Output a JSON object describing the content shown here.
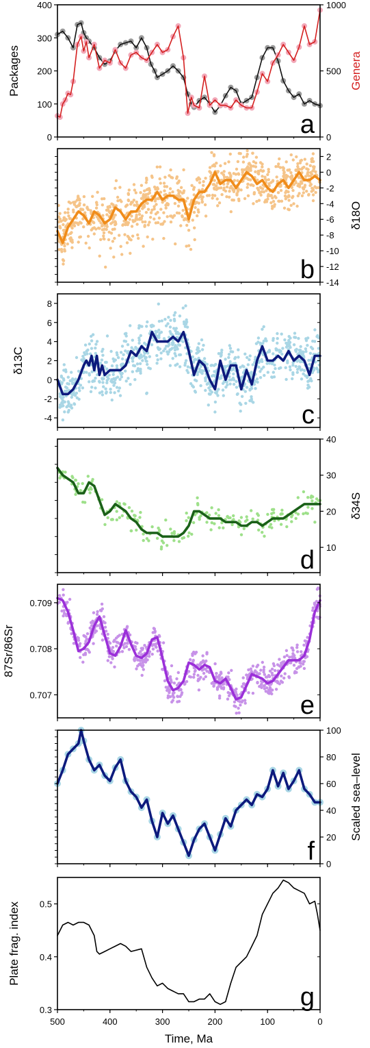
{
  "figure": {
    "x_axis": {
      "label": "Time, Ma",
      "ticks": [
        500,
        400,
        300,
        200,
        100,
        0
      ]
    }
  },
  "chart_data": [
    {
      "panel": "a",
      "type": "line",
      "xlim": [
        500,
        0
      ],
      "left_axis": {
        "label": "Packages",
        "ylim": [
          0,
          400
        ],
        "ticks": [
          0,
          100,
          200,
          300,
          400
        ]
      },
      "right_axis": {
        "label": "Genera",
        "label_color": "#d42020",
        "ylim": [
          0,
          1000
        ],
        "ticks": [
          0,
          500,
          1000
        ]
      },
      "series": [
        {
          "name": "Packages",
          "axis": "left",
          "color": "#111111",
          "marker_color": "#9a9a9a",
          "x": [
            500,
            490,
            480,
            470,
            462,
            455,
            450,
            445,
            440,
            430,
            420,
            410,
            400,
            390,
            380,
            370,
            360,
            350,
            340,
            330,
            322,
            315,
            310,
            300,
            290,
            280,
            270,
            260,
            252,
            245,
            240,
            230,
            220,
            210,
            200,
            190,
            180,
            170,
            160,
            150,
            140,
            130,
            120,
            110,
            100,
            90,
            80,
            70,
            60,
            50,
            40,
            30,
            20,
            10,
            0
          ],
          "y": [
            310,
            320,
            300,
            270,
            340,
            345,
            315,
            300,
            290,
            270,
            240,
            220,
            230,
            260,
            280,
            285,
            290,
            270,
            300,
            270,
            220,
            200,
            180,
            190,
            200,
            215,
            200,
            180,
            130,
            100,
            90,
            110,
            120,
            100,
            75,
            95,
            125,
            150,
            140,
            100,
            110,
            120,
            180,
            240,
            270,
            270,
            230,
            170,
            140,
            120,
            130,
            100,
            110,
            100,
            95
          ]
        },
        {
          "name": "Genera",
          "axis": "right",
          "color": "#d42020",
          "marker_color": "#f2a8b8",
          "x": [
            500,
            495,
            490,
            485,
            480,
            475,
            470,
            462,
            455,
            450,
            445,
            440,
            430,
            420,
            410,
            400,
            390,
            380,
            370,
            360,
            350,
            340,
            330,
            320,
            310,
            300,
            290,
            280,
            270,
            260,
            252,
            245,
            240,
            230,
            220,
            210,
            200,
            190,
            180,
            170,
            160,
            150,
            140,
            130,
            120,
            110,
            100,
            90,
            80,
            70,
            60,
            50,
            40,
            30,
            20,
            10,
            0
          ],
          "y": [
            160,
            150,
            250,
            280,
            330,
            320,
            420,
            700,
            760,
            650,
            720,
            600,
            700,
            520,
            580,
            560,
            660,
            560,
            520,
            620,
            640,
            600,
            580,
            640,
            700,
            640,
            660,
            760,
            840,
            600,
            180,
            300,
            240,
            220,
            460,
            240,
            280,
            240,
            240,
            220,
            280,
            240,
            220,
            220,
            340,
            480,
            420,
            560,
            620,
            700,
            640,
            580,
            680,
            840,
            700,
            720,
            960
          ]
        }
      ],
      "panel_label": "a"
    },
    {
      "panel": "b",
      "type": "scatter+line",
      "xlim": [
        500,
        0
      ],
      "right_axis": {
        "label": "δ18O",
        "ylim": [
          -14,
          3
        ],
        "ticks": [
          2,
          0,
          -2,
          -4,
          -6,
          -8,
          -10,
          -12,
          -14
        ]
      },
      "series": [
        {
          "name": "δ18O trend",
          "color": "#f08c1a",
          "scatter_color": "#f5c489",
          "x": [
            500,
            490,
            480,
            470,
            460,
            450,
            440,
            430,
            420,
            410,
            400,
            390,
            380,
            370,
            360,
            350,
            340,
            330,
            320,
            310,
            300,
            290,
            280,
            270,
            260,
            250,
            240,
            230,
            220,
            210,
            200,
            190,
            180,
            170,
            160,
            150,
            140,
            130,
            120,
            110,
            100,
            90,
            80,
            70,
            60,
            50,
            40,
            30,
            20,
            10,
            0
          ],
          "y": [
            -7.5,
            -9,
            -7,
            -6,
            -5,
            -5.5,
            -6.5,
            -5,
            -5.5,
            -6.5,
            -6,
            -4.5,
            -5,
            -6,
            -5,
            -5,
            -4,
            -3.5,
            -3.5,
            -2.5,
            -3.5,
            -3,
            -3,
            -3.5,
            -3.5,
            -6,
            -3.5,
            -2.5,
            -2.5,
            -1.5,
            0,
            -1.5,
            -1,
            -1,
            -2,
            -1,
            0,
            -0.5,
            -1.5,
            -1,
            -2,
            -2.5,
            -1.5,
            -1,
            -2,
            -1,
            0,
            -1,
            -1,
            -0.5,
            -1
          ]
        }
      ],
      "panel_label": "b"
    },
    {
      "panel": "c",
      "type": "scatter+line",
      "xlim": [
        500,
        0
      ],
      "left_axis": {
        "label": "δ13C",
        "ylim": [
          -5,
          9
        ],
        "ticks": [
          -4,
          -2,
          0,
          2,
          4,
          6,
          8
        ]
      },
      "series": [
        {
          "name": "δ13C trend",
          "color": "#0d1a7d",
          "scatter_color": "#a9d6e5",
          "x": [
            500,
            490,
            480,
            470,
            460,
            450,
            445,
            440,
            435,
            430,
            425,
            420,
            415,
            410,
            400,
            390,
            380,
            370,
            360,
            350,
            340,
            330,
            320,
            310,
            300,
            290,
            280,
            270,
            260,
            250,
            240,
            230,
            220,
            210,
            200,
            190,
            180,
            170,
            160,
            150,
            140,
            130,
            120,
            110,
            100,
            90,
            80,
            70,
            60,
            50,
            40,
            30,
            20,
            10,
            0
          ],
          "y": [
            0,
            -1.5,
            -1.5,
            -1,
            0,
            1.5,
            2,
            1.5,
            2.5,
            1,
            2.5,
            0.5,
            1.5,
            0.5,
            1,
            1,
            1,
            1.5,
            3,
            2.5,
            3.5,
            3,
            5,
            4,
            4,
            4,
            4.5,
            4,
            5,
            3,
            0.5,
            2,
            1.5,
            0,
            -1,
            2,
            0,
            1.5,
            1.5,
            -1,
            1,
            -0.5,
            2,
            3.5,
            2,
            2,
            2.5,
            2,
            3,
            2,
            2.5,
            2,
            0.5,
            2.5,
            2.5
          ]
        }
      ],
      "panel_label": "c"
    },
    {
      "panel": "d",
      "type": "scatter+line",
      "xlim": [
        500,
        0
      ],
      "right_axis": {
        "label": "δ34S",
        "ylim": [
          3,
          40
        ],
        "ticks": [
          10,
          20,
          30,
          40
        ]
      },
      "series": [
        {
          "name": "δ34S trend",
          "color": "#1a6018",
          "scatter_color": "#9ee08a",
          "x": [
            500,
            490,
            480,
            470,
            460,
            450,
            440,
            430,
            420,
            410,
            400,
            390,
            380,
            370,
            360,
            350,
            340,
            330,
            320,
            310,
            300,
            290,
            280,
            270,
            260,
            250,
            240,
            230,
            220,
            210,
            200,
            190,
            180,
            170,
            160,
            150,
            140,
            130,
            120,
            110,
            100,
            90,
            80,
            70,
            60,
            50,
            40,
            30,
            20,
            10,
            0
          ],
          "y": [
            32,
            30,
            29,
            28,
            25,
            25,
            28,
            27,
            23,
            19,
            20,
            22,
            21,
            20,
            18,
            17,
            15,
            14,
            14,
            14,
            13,
            13,
            13,
            13,
            14,
            16,
            20,
            20,
            19,
            18,
            18,
            18,
            17,
            17,
            17,
            16,
            16,
            17,
            17,
            16,
            17,
            18,
            18,
            18,
            19,
            20,
            21,
            22,
            22,
            22,
            22
          ]
        }
      ],
      "panel_label": "d"
    },
    {
      "panel": "e",
      "type": "scatter+line",
      "xlim": [
        500,
        0
      ],
      "left_axis": {
        "label": "87Sr/86Sr",
        "ylim": [
          0.7065,
          0.7094
        ],
        "ticks": [
          0.707,
          0.708,
          0.709
        ]
      },
      "series": [
        {
          "name": "87Sr/86Sr trend",
          "color": "#9b30d9",
          "scatter_color": "#c792e8",
          "x": [
            500,
            490,
            480,
            470,
            460,
            450,
            440,
            430,
            420,
            410,
            400,
            390,
            380,
            370,
            360,
            350,
            340,
            330,
            320,
            310,
            300,
            290,
            280,
            270,
            260,
            250,
            240,
            230,
            220,
            210,
            200,
            190,
            180,
            170,
            160,
            150,
            140,
            130,
            120,
            110,
            100,
            90,
            80,
            70,
            60,
            50,
            40,
            30,
            20,
            10,
            0
          ],
          "y": [
            0.7091,
            0.70905,
            0.7088,
            0.7084,
            0.70795,
            0.708,
            0.70815,
            0.7085,
            0.7087,
            0.7083,
            0.7079,
            0.70785,
            0.70805,
            0.7084,
            0.7081,
            0.70785,
            0.7078,
            0.7079,
            0.7082,
            0.70825,
            0.7078,
            0.7073,
            0.7071,
            0.70715,
            0.7073,
            0.7077,
            0.70765,
            0.70755,
            0.70765,
            0.7076,
            0.7073,
            0.70725,
            0.70735,
            0.70715,
            0.7069,
            0.70695,
            0.7072,
            0.70745,
            0.7074,
            0.70735,
            0.70725,
            0.7073,
            0.70745,
            0.7076,
            0.70775,
            0.70775,
            0.70775,
            0.70785,
            0.7082,
            0.7088,
            0.70905
          ]
        }
      ],
      "panel_label": "e"
    },
    {
      "panel": "f",
      "type": "scatter+line",
      "xlim": [
        500,
        0
      ],
      "right_axis": {
        "label": "Scaled sea–level",
        "ylim": [
          0,
          100
        ],
        "ticks": [
          0,
          20,
          40,
          60,
          80,
          100
        ]
      },
      "series": [
        {
          "name": "Scaled sea-level",
          "color": "#0d1a7d",
          "scatter_color": "#a9d6e5",
          "x": [
            500,
            490,
            480,
            470,
            460,
            455,
            450,
            440,
            430,
            420,
            410,
            400,
            390,
            380,
            370,
            360,
            350,
            340,
            330,
            320,
            310,
            300,
            290,
            280,
            270,
            260,
            250,
            240,
            230,
            220,
            210,
            200,
            190,
            180,
            170,
            160,
            150,
            140,
            130,
            120,
            110,
            100,
            90,
            80,
            70,
            60,
            50,
            40,
            30,
            20,
            10,
            0
          ],
          "y": [
            60,
            70,
            82,
            86,
            90,
            100,
            92,
            78,
            70,
            74,
            66,
            62,
            72,
            78,
            62,
            54,
            50,
            42,
            48,
            32,
            20,
            38,
            30,
            36,
            26,
            16,
            6,
            18,
            26,
            30,
            20,
            10,
            22,
            34,
            28,
            40,
            44,
            48,
            44,
            52,
            50,
            56,
            70,
            58,
            68,
            56,
            62,
            70,
            56,
            52,
            46,
            46
          ]
        }
      ],
      "panel_label": "f"
    },
    {
      "panel": "g",
      "type": "line",
      "xlim": [
        500,
        0
      ],
      "left_axis": {
        "label": "Plate frag. index",
        "ylim": [
          0.3,
          0.55
        ],
        "ticks": [
          0.3,
          0.4,
          0.5
        ]
      },
      "series": [
        {
          "name": "Plate frag. index",
          "color": "#000000",
          "x": [
            500,
            490,
            480,
            470,
            460,
            450,
            440,
            430,
            425,
            420,
            410,
            400,
            390,
            380,
            370,
            360,
            340,
            330,
            320,
            310,
            300,
            290,
            280,
            270,
            260,
            250,
            240,
            230,
            220,
            210,
            200,
            190,
            180,
            170,
            160,
            150,
            140,
            130,
            120,
            110,
            100,
            90,
            80,
            70,
            60,
            50,
            40,
            30,
            20,
            10,
            5,
            0
          ],
          "y": [
            0.44,
            0.46,
            0.465,
            0.46,
            0.465,
            0.465,
            0.46,
            0.44,
            0.41,
            0.405,
            0.41,
            0.415,
            0.42,
            0.425,
            0.42,
            0.41,
            0.415,
            0.38,
            0.36,
            0.345,
            0.35,
            0.34,
            0.335,
            0.33,
            0.33,
            0.315,
            0.315,
            0.32,
            0.32,
            0.33,
            0.315,
            0.31,
            0.315,
            0.35,
            0.38,
            0.39,
            0.4,
            0.42,
            0.44,
            0.48,
            0.5,
            0.52,
            0.53,
            0.545,
            0.54,
            0.53,
            0.525,
            0.52,
            0.5,
            0.505,
            0.48,
            0.45
          ]
        }
      ],
      "panel_label": "g"
    }
  ]
}
